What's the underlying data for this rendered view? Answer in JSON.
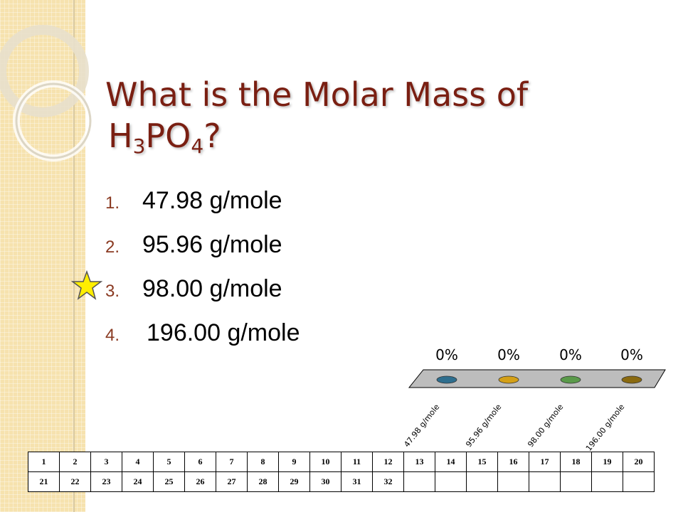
{
  "slide": {
    "title_line1": "What is the Molar Mass of",
    "title_formula": {
      "h": "H",
      "h_sub": "3",
      "po": "PO",
      "po_sub": "4",
      "q": "?"
    }
  },
  "answers": [
    {
      "num": "1.",
      "text": "47.98 g/mole"
    },
    {
      "num": "2.",
      "text": "95.96 g/mole"
    },
    {
      "num": "3.",
      "text": "98.00 g/mole"
    },
    {
      "num": "4.",
      "text": "196.00 g/mole"
    }
  ],
  "correct_marker": {
    "icon": "star-icon",
    "answer_index": 3,
    "color": "#ffee00"
  },
  "chart_data": {
    "type": "bar",
    "categories": [
      "47.98 g/mole",
      "95.96 g/mole",
      "98.00 g/mole",
      "196.00 g/mole"
    ],
    "values": [
      0,
      0,
      0,
      0
    ],
    "value_labels": [
      "0%",
      "0%",
      "0%",
      "0%"
    ],
    "colors": [
      "#2e6e8e",
      "#d4a017",
      "#5a9a4a",
      "#8a6a10"
    ],
    "ylim": [
      0,
      100
    ],
    "title": "",
    "xlabel": "",
    "ylabel": ""
  },
  "participants": {
    "row1": [
      "1",
      "2",
      "3",
      "4",
      "5",
      "6",
      "7",
      "8",
      "9",
      "10",
      "11",
      "12",
      "13",
      "14",
      "15",
      "16",
      "17",
      "18",
      "19",
      "20"
    ],
    "row2": [
      "21",
      "22",
      "23",
      "24",
      "25",
      "26",
      "27",
      "28",
      "29",
      "30",
      "31",
      "32",
      "",
      "",
      "",
      "",
      "",
      "",
      "",
      ""
    ]
  },
  "colors": {
    "title": "#7a1f12",
    "strip": "#f6e2ae"
  }
}
